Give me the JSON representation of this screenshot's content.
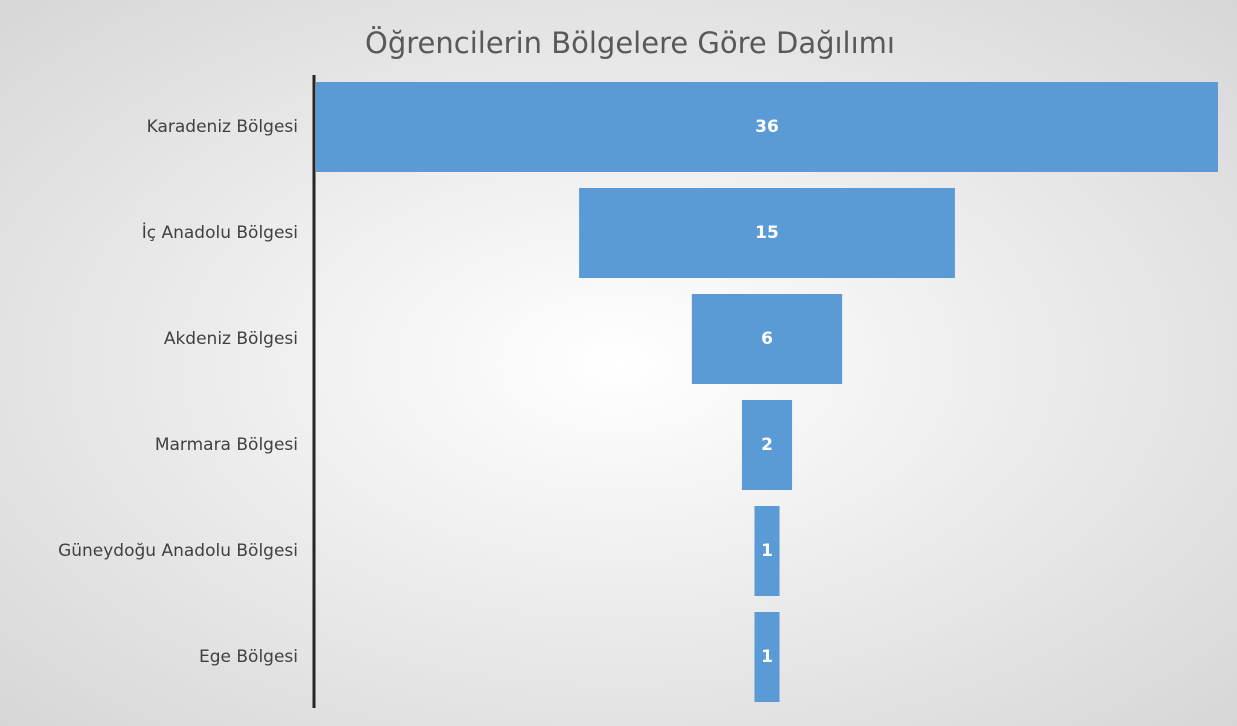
{
  "chart_data": {
    "type": "funnel",
    "title": "Öğrencilerin Bölgelere Göre Dağılımı",
    "categories": [
      "Karadeniz Bölgesi",
      "İç Anadolu Bölgesi",
      "Akdeniz Bölgesi",
      "Marmara Bölgesi",
      "Güneydoğu Anadolu Bölgesi",
      "Ege Bölgesi"
    ],
    "values": [
      36,
      15,
      6,
      2,
      1,
      1
    ],
    "color": "#5b9bd5"
  }
}
